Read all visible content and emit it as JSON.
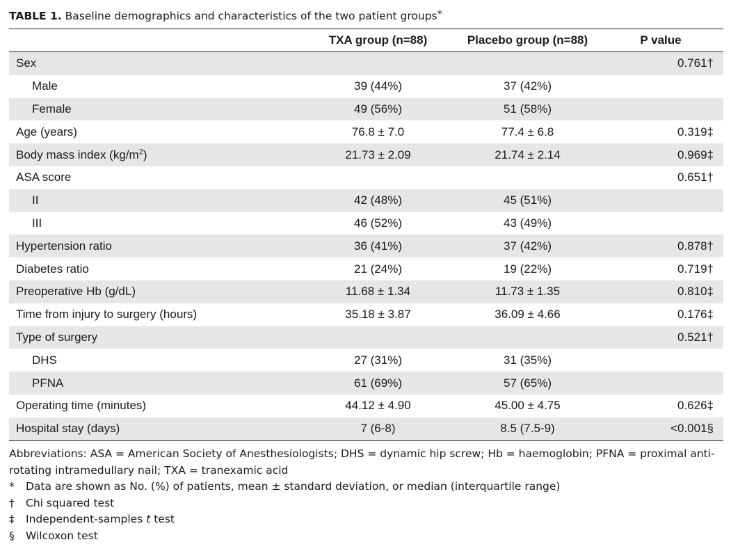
{
  "caption": {
    "label": "TABLE 1.",
    "text": "Baseline demographics and characteristics of the two patient groups",
    "mark": "*"
  },
  "table": {
    "headers": [
      "",
      "TXA group (n=88)",
      "Placebo group (n=88)",
      "P value"
    ],
    "rows": [
      {
        "label": "Sex",
        "txa": "",
        "placebo": "",
        "p": "0.761†",
        "indent": false
      },
      {
        "label": "Male",
        "txa": "39 (44%)",
        "placebo": "37 (42%)",
        "p": "",
        "indent": true
      },
      {
        "label": "Female",
        "txa": "49 (56%)",
        "placebo": "51 (58%)",
        "p": "",
        "indent": true
      },
      {
        "label": "Age (years)",
        "txa": "76.8 ± 7.0",
        "placebo": "77.4 ± 6.8",
        "p": "0.319‡",
        "indent": false
      },
      {
        "label": "Body mass index (kg/m",
        "label_sup": "2",
        "label_tail": ")",
        "txa": "21.73 ± 2.09",
        "placebo": "21.74 ± 2.14",
        "p": "0.969‡",
        "indent": false
      },
      {
        "label": "ASA score",
        "txa": "",
        "placebo": "",
        "p": "0.651†",
        "indent": false
      },
      {
        "label": "II",
        "txa": "42 (48%)",
        "placebo": "45 (51%)",
        "p": "",
        "indent": true
      },
      {
        "label": "III",
        "txa": "46 (52%)",
        "placebo": "43 (49%)",
        "p": "",
        "indent": true
      },
      {
        "label": "Hypertension ratio",
        "txa": "36 (41%)",
        "placebo": "37 (42%)",
        "p": "0.878†",
        "indent": false
      },
      {
        "label": "Diabetes ratio",
        "txa": "21 (24%)",
        "placebo": "19 (22%)",
        "p": "0.719†",
        "indent": false
      },
      {
        "label": "Preoperative Hb (g/dL)",
        "txa": "11.68 ± 1.34",
        "placebo": "11.73 ± 1.35",
        "p": "0.810‡",
        "indent": false
      },
      {
        "label": "Time from injury to surgery (hours)",
        "txa": "35.18 ± 3.87",
        "placebo": "36.09 ± 4.66",
        "p": "0.176‡",
        "indent": false
      },
      {
        "label": "Type of surgery",
        "txa": "",
        "placebo": "",
        "p": "0.521†",
        "indent": false
      },
      {
        "label": "DHS",
        "txa": "27 (31%)",
        "placebo": "31 (35%)",
        "p": "",
        "indent": true
      },
      {
        "label": "PFNA",
        "txa": "61 (69%)",
        "placebo": "57 (65%)",
        "p": "",
        "indent": true
      },
      {
        "label": "Operating time (minutes)",
        "txa": "44.12 ± 4.90",
        "placebo": "45.00 ± 4.75",
        "p": "0.626‡",
        "indent": false
      },
      {
        "label": "Hospital stay (days)",
        "txa": "7 (6-8)",
        "placebo": "8.5 (7.5-9)",
        "p": "<0.001§",
        "indent": false
      }
    ]
  },
  "notes": {
    "abbreviations": "Abbreviations: ASA = American Society of Anesthesiologists; DHS = dynamic hip screw; Hb = haemoglobin; PFNA = proximal anti-rotating intramedullary nail; TXA = tranexamic acid",
    "footnotes": [
      {
        "symbol": "*",
        "text": "Data are shown as No. (%) of patients, mean ± standard deviation, or median (interquartile range)"
      },
      {
        "symbol": "†",
        "text": "Chi squared test"
      },
      {
        "symbol": "‡",
        "text_before": "Independent-samples ",
        "text_italic": "t",
        "text_after": " test"
      },
      {
        "symbol": "§",
        "text": "Wilcoxon test"
      }
    ]
  }
}
